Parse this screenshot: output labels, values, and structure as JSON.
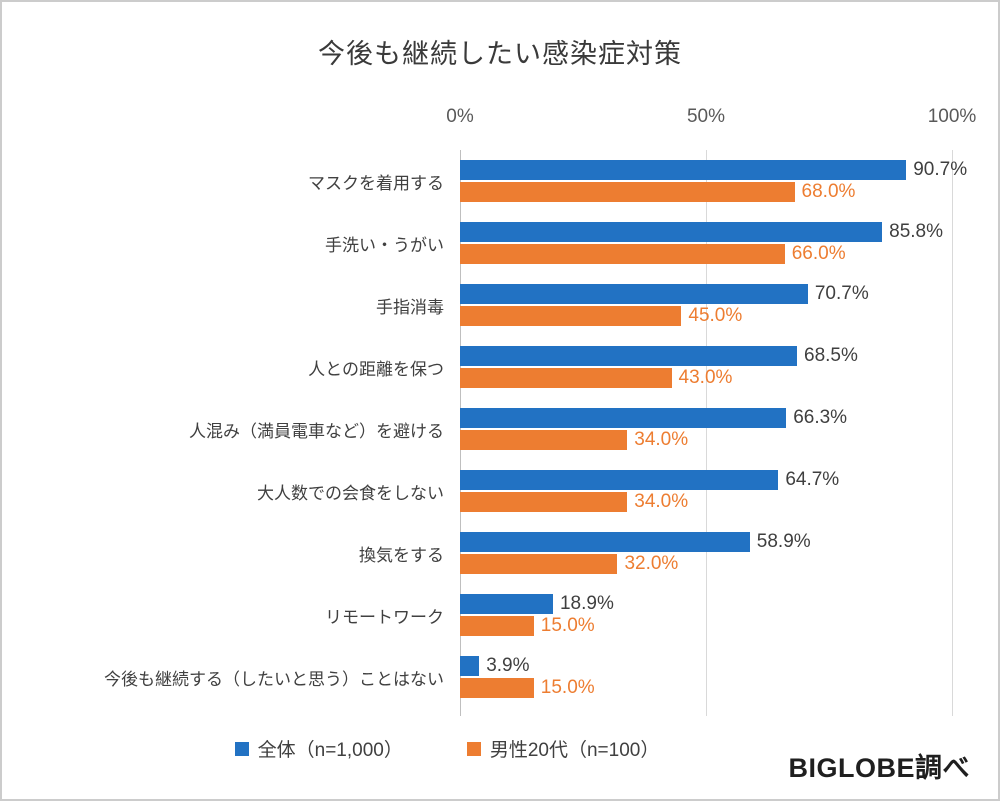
{
  "chart": {
    "source": "BIGLOBE調べ"
  },
  "chart_data": {
    "type": "bar",
    "orientation": "horizontal",
    "title": "今後も継続したい感染症対策",
    "categories": [
      "マスクを着用する",
      "手洗い・うがい",
      "手指消毒",
      "人との距離を保つ",
      "人混み（満員電車など）を避ける",
      "大人数での会食をしない",
      "換気をする",
      "リモートワーク",
      "今後も継続する（したいと思う）ことはない"
    ],
    "series": [
      {
        "name": "全体（n=1,000）",
        "color": "#2272C3",
        "label_color": "#3f3f3f",
        "values": [
          90.7,
          85.8,
          70.7,
          68.5,
          66.3,
          64.7,
          58.9,
          18.9,
          3.9
        ]
      },
      {
        "name": "男性20代（n=100）",
        "color": "#ED7D31",
        "label_color": "#ED7D31",
        "values": [
          68.0,
          66.0,
          45.0,
          43.0,
          34.0,
          34.0,
          32.0,
          15.0,
          15.0
        ]
      }
    ],
    "x_ticks": [
      {
        "label": "0%",
        "pos": 0
      },
      {
        "label": "50%",
        "pos": 50
      },
      {
        "label": "100%",
        "pos": 100
      }
    ],
    "xlim": [
      0,
      100
    ],
    "value_suffix": "%",
    "grid": true,
    "legend_position": "bottom"
  }
}
